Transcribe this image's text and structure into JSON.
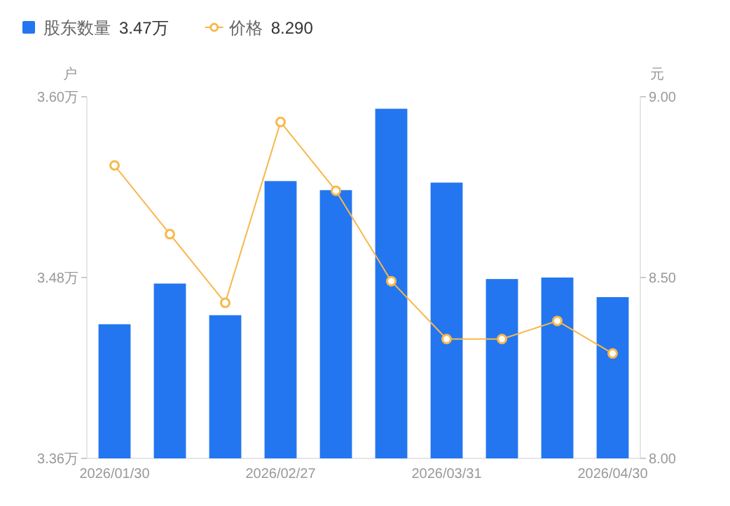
{
  "chart_data": {
    "type": "bar",
    "categories": [
      "2026/01/30",
      null,
      null,
      "2026/02/27",
      null,
      null,
      "2026/03/31",
      null,
      null,
      "2026/04/30"
    ],
    "series": [
      {
        "name": "股东数量",
        "color": "#2376f0",
        "values": [
          3.449,
          3.476,
          3.455,
          3.544,
          3.538,
          3.592,
          3.543,
          3.479,
          3.48,
          3.467
        ]
      },
      {
        "name": "价格",
        "type": "line",
        "axis": "y2",
        "color": "#f7b84b",
        "marker": "circle",
        "values": [
          8.81,
          8.62,
          8.43,
          8.93,
          8.74,
          8.49,
          8.33,
          8.33,
          8.38,
          8.29
        ]
      }
    ],
    "ylabel": "户",
    "y2label": "元",
    "ylim": [
      3.36,
      3.6
    ],
    "yticks": [
      {
        "value": 3.36,
        "label": "3.36万"
      },
      {
        "value": 3.48,
        "label": "3.48万"
      },
      {
        "value": 3.6,
        "label": "3.60万"
      }
    ],
    "y2lim": [
      8.0,
      9.0
    ],
    "y2ticks": [
      {
        "value": 8.0,
        "label": "8.00"
      },
      {
        "value": 8.5,
        "label": "8.50"
      },
      {
        "value": 9.0,
        "label": "9.00"
      }
    ],
    "annotations": [
      "3.47万",
      "8.290"
    ],
    "legend": "top left",
    "grid": false
  }
}
